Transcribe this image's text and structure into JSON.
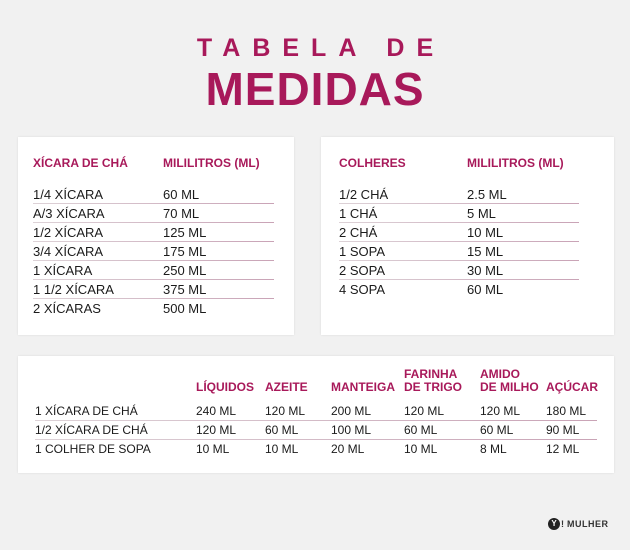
{
  "title": {
    "line1": "TABELA DE",
    "line2": "MEDIDAS"
  },
  "cups": {
    "headers": [
      "XÍCARA DE CHÁ",
      "MILILITROS (ML)"
    ],
    "rows": [
      [
        "1/4 XÍCARA",
        "60 ML"
      ],
      [
        "A/3 XÍCARA",
        "70 ML"
      ],
      [
        "1/2 XÍCARA",
        "125 ML"
      ],
      [
        "3/4 XÍCARA",
        "175 ML"
      ],
      [
        "1 XÍCARA",
        "250 ML"
      ],
      [
        "1 1/2 XÍCARA",
        "375 ML"
      ],
      [
        "2 XÍCARAS",
        "500 ML"
      ]
    ]
  },
  "spoons": {
    "headers": [
      "COLHERES",
      "MILILITROS (ML)"
    ],
    "rows": [
      [
        "1/2 CHÁ",
        "2.5 ML"
      ],
      [
        "1 CHÁ",
        "5 ML"
      ],
      [
        "2 CHÁ",
        "10 ML"
      ],
      [
        "1 SOPA",
        "15 ML"
      ],
      [
        "2 SOPA",
        "30 ML"
      ],
      [
        "4 SOPA",
        "60 ML"
      ]
    ]
  },
  "ingredients": {
    "headers": [
      "LÍQUIDOS",
      "AZEITE",
      "MANTEIGA",
      "FARINHA\nDE TRIGO",
      "AMIDO\nDE MILHO",
      "AÇÚCAR"
    ],
    "rows": [
      {
        "label": "1 XÍCARA DE CHÁ",
        "values": [
          "240 ML",
          "120 ML",
          "200 ML",
          "120 ML",
          "120 ML",
          "180 ML"
        ]
      },
      {
        "label": "1/2 XÍCARA DE CHÁ",
        "values": [
          "120 ML",
          "60 ML",
          "100 ML",
          "60 ML",
          "60 ML",
          "90 ML"
        ]
      },
      {
        "label": "1 COLHER DE SOPA",
        "values": [
          "10 ML",
          "10 ML",
          "20 ML",
          "10 ML",
          "8 ML",
          "12 ML"
        ]
      }
    ]
  },
  "brand": {
    "badge": "Y",
    "bang": "!",
    "word": "MULHER"
  },
  "colors": {
    "accent": "#a8195a",
    "background": "#f1f1f1",
    "card": "#ffffff",
    "text": "#1b1b1b"
  }
}
